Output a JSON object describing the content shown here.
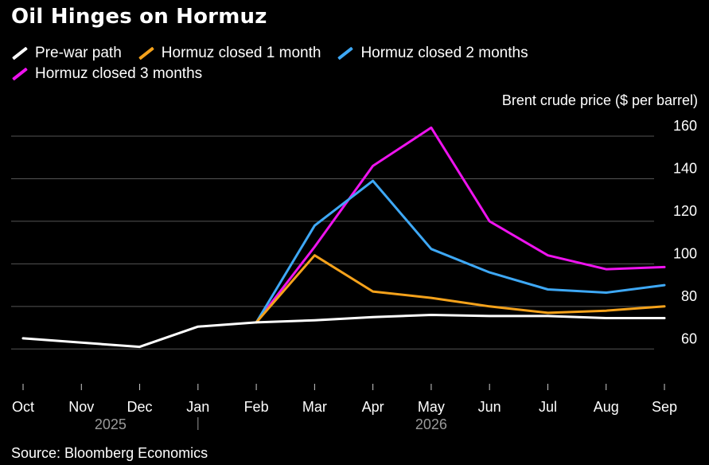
{
  "title": "Oil Hinges on Hormuz",
  "legend": [
    {
      "label": "Pre-war path",
      "color": "#ffffff"
    },
    {
      "label": "Hormuz closed 1 month",
      "color": "#f5a21b"
    },
    {
      "label": "Hormuz closed 2 months",
      "color": "#3ea8f5"
    },
    {
      "label": "Hormuz closed 3 months",
      "color": "#ee13ee"
    }
  ],
  "unit_label": "Brent crude price ($ per barrel)",
  "source": "Source: Bloomberg Economics",
  "chart_data": {
    "type": "line",
    "title": "Oil Hinges on Hormuz",
    "ylabel": "Brent crude price ($ per barrel)",
    "xlabel": "",
    "ylim": [
      53,
      163
    ],
    "yticks": [
      60,
      80,
      100,
      120,
      140,
      160
    ],
    "categories": [
      "Oct",
      "Nov",
      "Dec",
      "Jan",
      "Feb",
      "Mar",
      "Apr",
      "May",
      "Jun",
      "Jul",
      "Aug",
      "Sep"
    ],
    "year_labels": [
      {
        "label": "2025",
        "at": 1.5
      },
      {
        "label": "2026",
        "at": 7
      }
    ],
    "year_divider_at": 3,
    "series": [
      {
        "name": "Pre-war path",
        "color": "#ffffff",
        "values": [
          65,
          63,
          61,
          70.5,
          72.5,
          73.5,
          75,
          76,
          75.5,
          75.5,
          74.5,
          74.5
        ]
      },
      {
        "name": "Hormuz closed 1 month",
        "color": "#f5a21b",
        "values": [
          null,
          null,
          null,
          null,
          72.5,
          104,
          87,
          84,
          80,
          77,
          78,
          80
        ]
      },
      {
        "name": "Hormuz closed 2 months",
        "color": "#3ea8f5",
        "values": [
          null,
          null,
          null,
          null,
          72.5,
          118,
          139,
          107,
          96,
          88,
          86.5,
          90
        ]
      },
      {
        "name": "Hormuz closed 3 months",
        "color": "#ee13ee",
        "values": [
          null,
          null,
          null,
          null,
          72.5,
          108,
          146,
          164,
          120,
          104,
          97.5,
          98.5
        ]
      }
    ]
  }
}
